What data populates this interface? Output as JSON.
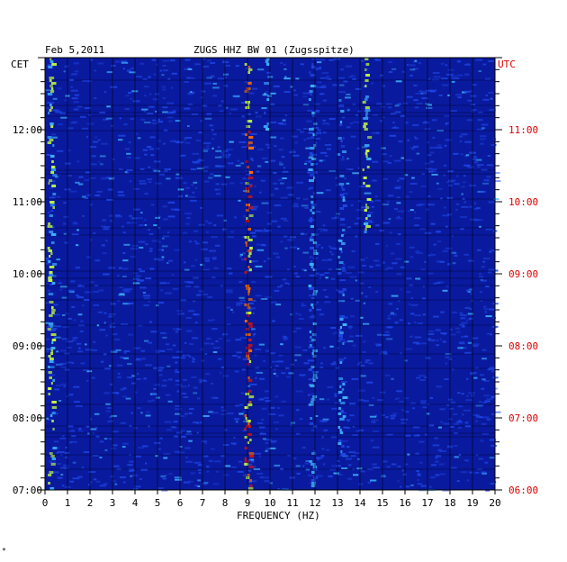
{
  "chart_data": {
    "type": "heatmap",
    "header": {
      "date": "Feb 5,2011",
      "station": "ZUGS HHZ BW 01 (Zugsspitze)"
    },
    "left_axis_label": "CET",
    "right_axis_label": "UTC",
    "xlabel": "FREQUENCY (HZ)",
    "xlim": [
      0,
      20
    ],
    "x_ticks": [
      "0",
      "1",
      "2",
      "3",
      "4",
      "5",
      "6",
      "7",
      "8",
      "9",
      "10",
      "11",
      "12",
      "13",
      "14",
      "15",
      "16",
      "17",
      "18",
      "19",
      "20"
    ],
    "time_range_cet": [
      "07:00",
      "13:00"
    ],
    "left_ticks": [
      "12:00",
      "11:00",
      "10:00",
      "09:00",
      "08:00",
      "07:00"
    ],
    "right_ticks": [
      "11:00",
      "10:00",
      "09:00",
      "08:00",
      "07:00",
      "06:00"
    ],
    "colors": {
      "background": "#0a1a9e",
      "dark_band": "#06127a",
      "low": "#1e46e6",
      "mid": "#3cb4ff",
      "high": "#c8ff3c",
      "peak": "#ff6e00",
      "max": "#d21414",
      "frame": "#000000",
      "cet_text": "#000000",
      "utc_text": "#e00000"
    },
    "features": [
      {
        "description_freq_hz": 0.3,
        "strength": "high",
        "span_cet": [
          "07:00",
          "13:00"
        ]
      },
      {
        "description_freq_hz": 9.05,
        "strength": "peak",
        "span_cet": [
          "07:00",
          "13:00"
        ]
      },
      {
        "description_freq_hz": 9.9,
        "strength": "mid",
        "span_cet": [
          "12:00",
          "13:00"
        ]
      },
      {
        "description_freq_hz": 11.9,
        "strength": "mid",
        "span_cet": [
          "07:00",
          "13:00"
        ]
      },
      {
        "description_freq_hz": 13.2,
        "strength": "mid",
        "span_cet": [
          "07:30",
          "12:30"
        ]
      },
      {
        "description_freq_hz": 14.3,
        "strength": "high",
        "span_cet": [
          "10:30",
          "13:00"
        ]
      }
    ],
    "footer_mark": "*"
  }
}
